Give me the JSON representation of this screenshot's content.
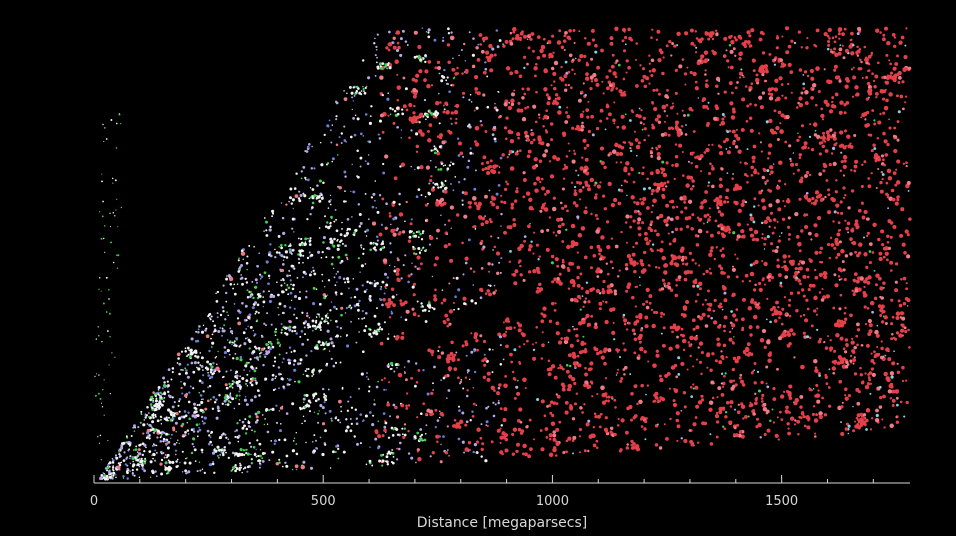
{
  "chart_data": {
    "type": "scatter",
    "title": "",
    "xlabel": "Distance [megaparsecs]",
    "ylabel": "",
    "xlim": [
      0,
      1780
    ],
    "xticks": [
      0,
      500,
      1000,
      1500
    ],
    "grid": false,
    "legend": "none",
    "background_color": "#000000",
    "axis_color": "#d8d8d8",
    "colors": {
      "near_white": "#f2f2f2",
      "lavender": "#b7a8e8",
      "blue": "#6d7fd6",
      "green": "#3fd24f",
      "red": "#e5404a",
      "pink": "#ef7b86",
      "cyan": "#7fd7e8"
    },
    "survey_wedges": [
      {
        "name": "",
        "x_start": 0,
        "x_end": 1780,
        "note_color_trend": "white/lavender near, red far"
      }
    ]
  }
}
